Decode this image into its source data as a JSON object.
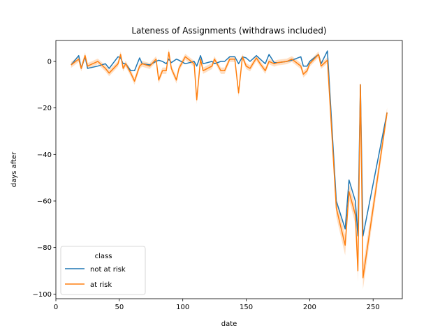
{
  "chart_data": {
    "type": "line",
    "title": "Lateness of Assignments (withdraws included)",
    "xlabel": "date",
    "ylabel": "days after",
    "xlim": [
      0,
      273
    ],
    "ylim": [
      -102,
      9
    ],
    "xticks": [
      0,
      50,
      100,
      150,
      200,
      250
    ],
    "yticks": [
      0,
      -20,
      -40,
      -60,
      -80,
      -100
    ],
    "grid": false,
    "legend": {
      "title": "class",
      "placement": "lower-left"
    },
    "series": [
      {
        "name": "not at risk",
        "color": "#1f77b4",
        "x": [
          12,
          18,
          20,
          23,
          25,
          33,
          39,
          42,
          49,
          51,
          53,
          55,
          59,
          62,
          66,
          68,
          74,
          79,
          81,
          84,
          87,
          89,
          91,
          95,
          97,
          102,
          109,
          111,
          114,
          116,
          123,
          125,
          130,
          133,
          137,
          141,
          144,
          147,
          150,
          153,
          158,
          161,
          165,
          168,
          172,
          175,
          182,
          186,
          193,
          195,
          198,
          200,
          207,
          209,
          214,
          221,
          228,
          231,
          236,
          238,
          240,
          242,
          261
        ],
        "y": [
          -1.5,
          2.5,
          -3,
          2,
          -3,
          -2,
          -1,
          -3,
          2,
          1.5,
          -1,
          -1,
          -4,
          -4,
          1.5,
          -1,
          -1.5,
          0,
          0.5,
          0,
          -1,
          1,
          -0.5,
          1,
          0.5,
          -1,
          0,
          -2,
          2.5,
          -1,
          0,
          -1,
          0,
          0,
          2,
          2,
          -1,
          2,
          1.5,
          0,
          2.5,
          1,
          -1,
          3,
          -0.5,
          -0.5,
          0,
          0.5,
          2,
          -2,
          -2,
          0,
          3,
          -1,
          4.5,
          -60,
          -72,
          -51,
          -60,
          -75,
          -10,
          -75,
          -22
        ]
      },
      {
        "name": "at risk",
        "color": "#ff7f0e",
        "x": [
          12,
          18,
          20,
          23,
          25,
          33,
          39,
          42,
          49,
          51,
          53,
          55,
          59,
          62,
          66,
          68,
          74,
          79,
          81,
          84,
          87,
          89,
          91,
          95,
          97,
          102,
          109,
          111,
          114,
          116,
          123,
          125,
          130,
          133,
          137,
          141,
          144,
          147,
          150,
          153,
          158,
          161,
          165,
          168,
          172,
          175,
          182,
          186,
          193,
          195,
          198,
          200,
          207,
          209,
          214,
          221,
          228,
          231,
          236,
          238,
          240,
          242,
          261
        ],
        "y": [
          -1.5,
          1,
          -3,
          2.5,
          -2,
          0,
          -3,
          -5,
          -1,
          3,
          -3,
          -1,
          -5,
          -8.5,
          -2,
          -1,
          -2,
          1,
          -8,
          -4,
          -4,
          4,
          -3,
          -8,
          -3,
          2,
          -1,
          -16.5,
          1,
          -4,
          -2,
          1,
          -4,
          -4,
          1,
          1,
          -13.5,
          2,
          -2,
          -3,
          1.5,
          -1,
          -4,
          0,
          -1,
          -0.5,
          0,
          1,
          -2,
          -5.5,
          -4,
          -1,
          3,
          -2,
          0.5,
          -63,
          -79,
          -56,
          -66,
          -90,
          -10,
          -93,
          -22
        ]
      }
    ]
  }
}
